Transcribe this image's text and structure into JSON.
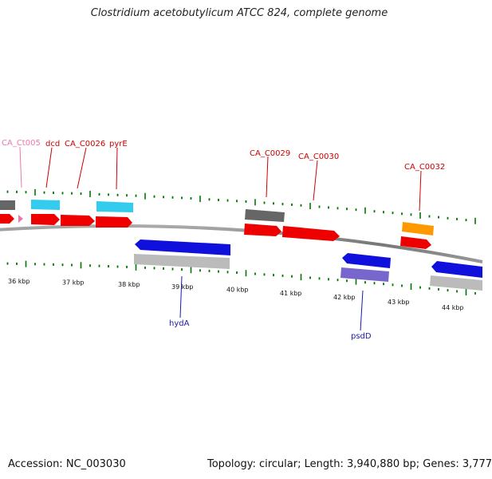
{
  "title": "Clostridium acetobutylicum ATCC 824, complete genome",
  "footer": {
    "accession": "Accession: NC_003030",
    "summary": "Topology: circular; Length: 3,940,880 bp; Genes: 3,777"
  },
  "colors": {
    "forward_cds": "#ee0000",
    "reverse_cds": "#1010dd",
    "forward_label": "#cc0000",
    "reverse_label": "#1a1aaa",
    "trna_label": "#ee77aa",
    "blue_light": "#33ccee",
    "grey_feature": "#666666",
    "light_grey_feature": "#bbbbbb",
    "orange_feature": "#ff9900",
    "purple_feature": "#7766cc",
    "backbone": "#888888",
    "tick": "#007700"
  },
  "scale_labels": [
    "36 kbp",
    "37 kbp",
    "38 kbp",
    "39 kbp",
    "40 kbp",
    "41 kbp",
    "42 kbp",
    "43 kbp",
    "44 kbp"
  ],
  "forward_genes": [
    "CA_Ct005",
    "dcd",
    "CA_C0026",
    "pyrE",
    "CA_C0029",
    "CA_C0030",
    "CA_C0032"
  ],
  "reverse_genes": [
    "hydA",
    "psdD"
  ]
}
